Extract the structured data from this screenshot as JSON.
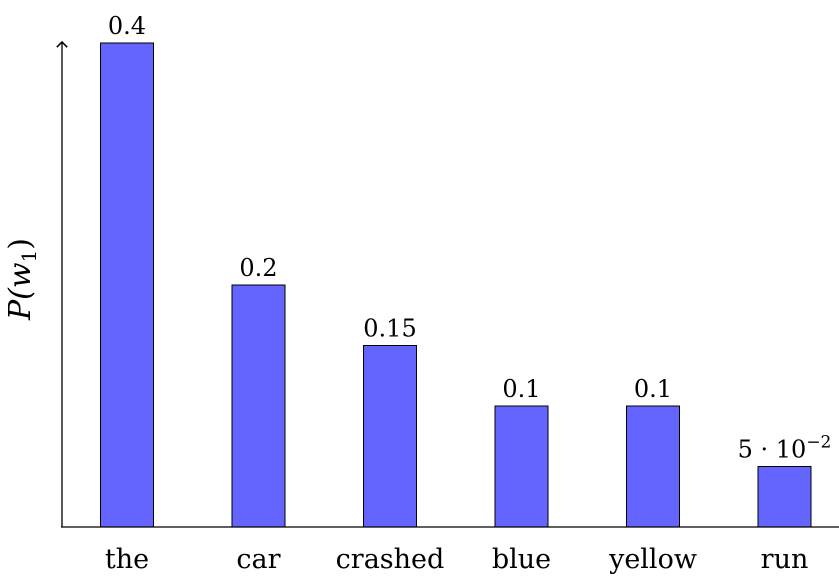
{
  "chart_data": {
    "type": "bar",
    "title": "",
    "xlabel": "",
    "ylabel": "P(w1)",
    "ylabel_parts": {
      "base": "P(w",
      "sub": "1",
      "close": ")"
    },
    "categories": [
      "the",
      "car",
      "crashed",
      "blue",
      "yellow",
      "run"
    ],
    "values": [
      0.4,
      0.2,
      0.15,
      0.1,
      0.1,
      0.05
    ],
    "data_labels": [
      "0.4",
      "0.2",
      "0.15",
      "0.1",
      "0.1",
      "5 · 10−2"
    ],
    "data_label_parts": [
      {
        "text": "0.4"
      },
      {
        "text": "0.2"
      },
      {
        "text": "0.15"
      },
      {
        "text": "0.1"
      },
      {
        "text": "0.1"
      },
      {
        "text": "5 · 10",
        "sup": "−2"
      }
    ],
    "ylim": [
      0,
      0.4
    ],
    "grid": false,
    "legend": "none",
    "colors": {
      "bar_fill": "#6464ff",
      "bar_stroke": "#000000",
      "axis": "#000000"
    }
  }
}
